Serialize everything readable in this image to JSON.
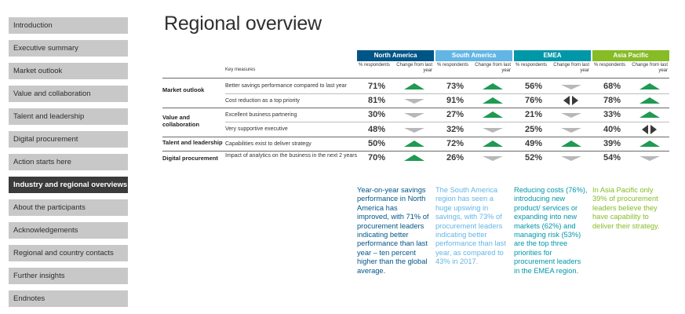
{
  "colors": {
    "north_america": "#005587",
    "south_america": "#62b5e5",
    "emea": "#0097a9",
    "asia_pacific": "#86bc25",
    "up_arrow": "#1f9a53",
    "down_arrow": "#b8b8b8",
    "sidebar_active": "#3b3b3b",
    "sidebar_item": "#c8c8c8"
  },
  "sidebar": {
    "items": [
      {
        "label": "Introduction",
        "active": false
      },
      {
        "label": "Executive summary",
        "active": false
      },
      {
        "label": "Market outlook",
        "active": false
      },
      {
        "label": "Value and collaboration",
        "active": false
      },
      {
        "label": "Talent and leadership",
        "active": false
      },
      {
        "label": "Digital procurement",
        "active": false
      },
      {
        "label": "Action starts here",
        "active": false
      },
      {
        "label": "Industry and regional overviews",
        "active": true
      },
      {
        "label": "About the participants",
        "active": false
      },
      {
        "label": "Acknowledgements",
        "active": false
      },
      {
        "label": "Regional and country contacts",
        "active": false
      },
      {
        "label": "Further insights",
        "active": false
      },
      {
        "label": "Endnotes",
        "active": false
      }
    ]
  },
  "page": {
    "title": "Regional overview"
  },
  "table": {
    "key_measures_label": "Key measures",
    "respondents_label": "% respondents",
    "change_label": "Change from last year",
    "regions": [
      "North America",
      "South America",
      "EMEA",
      "Asia Pacific"
    ],
    "categories": [
      {
        "label": "Market outlook"
      },
      {
        "label": "Value and collaboration"
      },
      {
        "label": "Talent and leadership"
      },
      {
        "label": "Digital procurement"
      }
    ],
    "rows": [
      {
        "measure": "Better savings performance compared to last year",
        "cells": [
          {
            "pct": "71%",
            "change": "up"
          },
          {
            "pct": "73%",
            "change": "up"
          },
          {
            "pct": "56%",
            "change": "down"
          },
          {
            "pct": "68%",
            "change": "up"
          }
        ]
      },
      {
        "measure": "Cost reduction as a top priority",
        "cells": [
          {
            "pct": "81%",
            "change": "down"
          },
          {
            "pct": "91%",
            "change": "up"
          },
          {
            "pct": "76%",
            "change": "flat"
          },
          {
            "pct": "78%",
            "change": "up"
          }
        ]
      },
      {
        "measure": "Excellent business partnering",
        "cells": [
          {
            "pct": "30%",
            "change": "down"
          },
          {
            "pct": "27%",
            "change": "up"
          },
          {
            "pct": "21%",
            "change": "down"
          },
          {
            "pct": "33%",
            "change": "up"
          }
        ]
      },
      {
        "measure": "Very supportive executive",
        "cells": [
          {
            "pct": "48%",
            "change": "down"
          },
          {
            "pct": "32%",
            "change": "down"
          },
          {
            "pct": "25%",
            "change": "down"
          },
          {
            "pct": "40%",
            "change": "flat"
          }
        ]
      },
      {
        "measure": "Capabilities exist to deliver strategy",
        "cells": [
          {
            "pct": "50%",
            "change": "up"
          },
          {
            "pct": "72%",
            "change": "up"
          },
          {
            "pct": "49%",
            "change": "up"
          },
          {
            "pct": "39%",
            "change": "up"
          }
        ]
      },
      {
        "measure": "Impact of analytics on the business in the next 2 years",
        "cells": [
          {
            "pct": "70%",
            "change": "up"
          },
          {
            "pct": "26%",
            "change": "down"
          },
          {
            "pct": "52%",
            "change": "down"
          },
          {
            "pct": "54%",
            "change": "down"
          }
        ]
      }
    ]
  },
  "notes": [
    "Year-on-year savings performance in North America has improved, with 71% of procurement leaders indicating better performance than last year – ten percent higher than the global average.",
    "The South America region has seen a huge upswing in savings, with 73% of procurement leaders indicating better performance than last year, as compared to 43% in 2017.",
    "Reducing costs (76%), introducing new product/ services or expanding into new markets (62%) and managing risk (53%) are the top three priorities for procurement leaders in the EMEA region.",
    "In Asia Pacific only 39% of procurement leaders believe they have capability to deliver their strategy."
  ]
}
